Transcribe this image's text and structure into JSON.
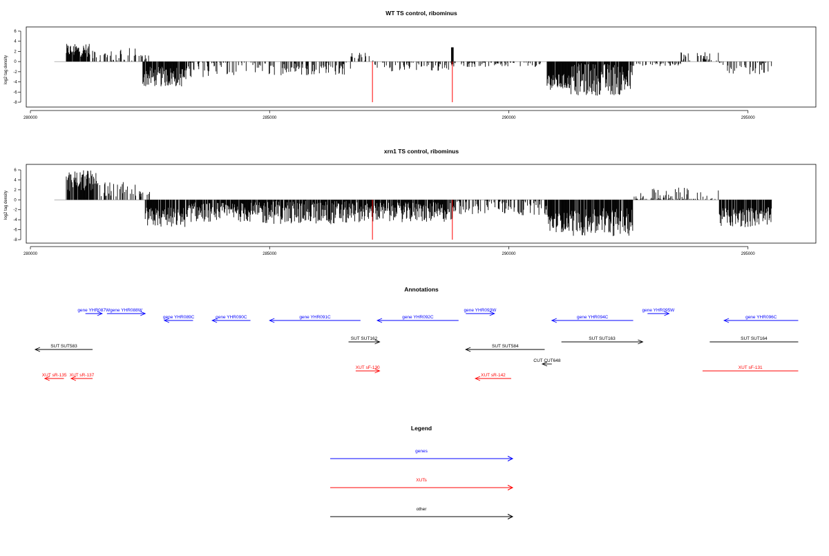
{
  "chart_data": [
    {
      "type": "bar",
      "title": "WT TS control, ribominus",
      "ylabel": "log2 tag density",
      "xlim": [
        280000,
        296000
      ],
      "ylim": [
        -8,
        7
      ],
      "yticks": [
        -8,
        -6,
        -4,
        -2,
        0,
        2,
        4,
        6
      ],
      "xticks": [
        280000,
        285000,
        290000,
        295000
      ],
      "bar_color": "#000000",
      "marker_color": "#ff0000",
      "red_markers": [
        {
          "x": 287150,
          "y": -8
        },
        {
          "x": 288820,
          "y": -8
        }
      ],
      "coverage_segments": [
        {
          "from": 280750,
          "to": 281250,
          "mean": 2.2,
          "max": 3.8
        },
        {
          "from": 281250,
          "to": 281700,
          "mean": 1.2,
          "max": 2.5
        },
        {
          "from": 281700,
          "to": 282200,
          "mean": 1.4,
          "max": 3.2
        },
        {
          "from": 282200,
          "to": 282500,
          "mean": 0.8,
          "max": 1.5
        },
        {
          "from": 282350,
          "to": 283300,
          "mean": -3.0,
          "max": -5.5
        },
        {
          "from": 283300,
          "to": 284900,
          "mean": -1.3,
          "max": -3.5
        },
        {
          "from": 284900,
          "to": 286700,
          "mean": -1.4,
          "max": -3.0
        },
        {
          "from": 286700,
          "to": 287200,
          "mean": 0.8,
          "max": 2.0
        },
        {
          "from": 287200,
          "to": 288900,
          "mean": -0.8,
          "max": -2.2
        },
        {
          "from": 288800,
          "to": 288850,
          "mean": 2.8,
          "max": 2.8
        },
        {
          "from": 289000,
          "to": 290800,
          "mean": -0.5,
          "max": -1.2
        },
        {
          "from": 290800,
          "to": 291300,
          "mean": -4.0,
          "max": -6.0
        },
        {
          "from": 291300,
          "to": 292600,
          "mean": -3.5,
          "max": -7.5
        },
        {
          "from": 292600,
          "to": 293600,
          "mean": -0.5,
          "max": -1.0
        },
        {
          "from": 293600,
          "to": 294400,
          "mean": 1.0,
          "max": 2.3
        },
        {
          "from": 294400,
          "to": 295500,
          "mean": -1.2,
          "max": -2.8
        }
      ]
    },
    {
      "type": "bar",
      "title": "xrn1 TS control, ribominus",
      "ylabel": "log2 tag density",
      "xlim": [
        280000,
        296000
      ],
      "ylim": [
        -8,
        7
      ],
      "yticks": [
        -8,
        -6,
        -4,
        -2,
        0,
        2,
        4,
        6
      ],
      "xticks": [
        280000,
        285000,
        290000,
        295000
      ],
      "bar_color": "#000000",
      "marker_color": "#ff0000",
      "red_markers": [
        {
          "x": 287150,
          "y": -8
        },
        {
          "x": 288820,
          "y": -8
        }
      ],
      "coverage_segments": [
        {
          "from": 280750,
          "to": 281400,
          "mean": 3.8,
          "max": 6.5
        },
        {
          "from": 281400,
          "to": 282200,
          "mean": 2.0,
          "max": 4.0
        },
        {
          "from": 282200,
          "to": 282500,
          "mean": 1.0,
          "max": 2.0
        },
        {
          "from": 282400,
          "to": 283300,
          "mean": -3.5,
          "max": -6.0
        },
        {
          "from": 283300,
          "to": 284800,
          "mean": -2.5,
          "max": -5.0
        },
        {
          "from": 284800,
          "to": 286700,
          "mean": -2.5,
          "max": -5.5
        },
        {
          "from": 286700,
          "to": 288900,
          "mean": -2.5,
          "max": -5.0
        },
        {
          "from": 288900,
          "to": 290800,
          "mean": -1.5,
          "max": -3.5
        },
        {
          "from": 290800,
          "to": 291300,
          "mean": -4.5,
          "max": -7.0
        },
        {
          "from": 291300,
          "to": 292600,
          "mean": -4.5,
          "max": -8.0
        },
        {
          "from": 292600,
          "to": 294400,
          "mean": 0.5,
          "max": 3.0
        },
        {
          "from": 294400,
          "to": 295500,
          "mean": -3.5,
          "max": -6.0
        }
      ]
    }
  ],
  "annotations": {
    "title": "Annotations",
    "colors": {
      "genes": "#0000ff",
      "XUTs": "#ff0000",
      "other": "#000000"
    },
    "features": [
      {
        "label": "gene YHR087W",
        "type": "genes",
        "from": 281150,
        "to": 281500,
        "dir": "right",
        "row": 0
      },
      {
        "label": "gene YHR088W",
        "type": "genes",
        "from": 281600,
        "to": 282400,
        "dir": "right",
        "row": 0
      },
      {
        "label": "gene YHR089C",
        "type": "genes",
        "from": 282800,
        "to": 283400,
        "dir": "left",
        "row": 1
      },
      {
        "label": "gene YHR090C",
        "type": "genes",
        "from": 283800,
        "to": 284600,
        "dir": "left",
        "row": 1
      },
      {
        "label": "gene YHR091C",
        "type": "genes",
        "from": 285000,
        "to": 286900,
        "dir": "left",
        "row": 1
      },
      {
        "label": "gene YHR092C",
        "type": "genes",
        "from": 287250,
        "to": 288950,
        "dir": "left",
        "row": 1
      },
      {
        "label": "gene YHR093W",
        "type": "genes",
        "from": 289100,
        "to": 289700,
        "dir": "right",
        "row": 0
      },
      {
        "label": "gene YHR094C",
        "type": "genes",
        "from": 290900,
        "to": 292600,
        "dir": "left",
        "row": 1
      },
      {
        "label": "gene YHR095W",
        "type": "genes",
        "from": 292900,
        "to": 293350,
        "dir": "right",
        "row": 0
      },
      {
        "label": "gene YHR096C",
        "type": "genes",
        "from": 294500,
        "to": 296050,
        "dir": "left",
        "row": 1
      },
      {
        "label": "SUT SUT583",
        "type": "other",
        "from": 280100,
        "to": 281300,
        "dir": "left",
        "row": 3
      },
      {
        "label": "SUT SUT162",
        "type": "other",
        "from": 286650,
        "to": 287300,
        "dir": "right",
        "row": 2
      },
      {
        "label": "SUT SUT584",
        "type": "other",
        "from": 289100,
        "to": 290750,
        "dir": "left",
        "row": 3
      },
      {
        "label": "SUT SUT163",
        "type": "other",
        "from": 291100,
        "to": 292800,
        "dir": "right",
        "row": 2
      },
      {
        "label": "SUT SUT164",
        "type": "other",
        "from": 294200,
        "to": 296050,
        "dir": "none",
        "row": 2
      },
      {
        "label": "CUT CUT648",
        "type": "other",
        "from": 290700,
        "to": 290900,
        "dir": "left",
        "row": 4
      },
      {
        "label": "XUT sR-135",
        "type": "XUTs",
        "from": 280300,
        "to": 280700,
        "dir": "left",
        "row": 6
      },
      {
        "label": "XUT sR-137",
        "type": "XUTs",
        "from": 280850,
        "to": 281300,
        "dir": "left",
        "row": 6
      },
      {
        "label": "XUT sF-130",
        "type": "XUTs",
        "from": 286800,
        "to": 287300,
        "dir": "right",
        "row": 5
      },
      {
        "label": "XUT sR-142",
        "type": "XUTs",
        "from": 289300,
        "to": 290050,
        "dir": "left",
        "row": 6
      },
      {
        "label": "XUT sF-131",
        "type": "XUTs",
        "from": 294050,
        "to": 296050,
        "dir": "none",
        "row": 5
      }
    ]
  },
  "legend": {
    "title": "Legend",
    "items": [
      {
        "label": "genes",
        "color": "#0000ff"
      },
      {
        "label": "XUTs",
        "color": "#ff0000"
      },
      {
        "label": "other",
        "color": "#000000"
      }
    ]
  }
}
